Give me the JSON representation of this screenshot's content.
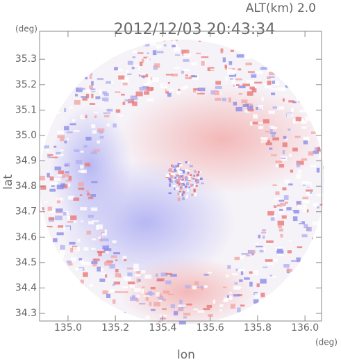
{
  "chart_data": {
    "type": "image",
    "title": "2012/12/03 20:43:34",
    "subtitle": "ALT(km) 2.0",
    "x_label": "lon",
    "y_label": "lat",
    "x_unit": "(deg)",
    "y_unit": "(deg)",
    "xlim": [
      134.88,
      136.07
    ],
    "ylim": [
      34.27,
      35.41
    ],
    "xticks": [
      {
        "value": 135,
        "label": "135.0"
      },
      135.2,
      135.4,
      135.6,
      135.8,
      {
        "value": 136,
        "label": "136.0"
      }
    ],
    "yticks": [
      34.3,
      34.4,
      34.5,
      34.6,
      34.7,
      34.8,
      34.9,
      {
        "value": 35,
        "label": "35.0"
      },
      35.1,
      35.2,
      35.3
    ]
  }
}
